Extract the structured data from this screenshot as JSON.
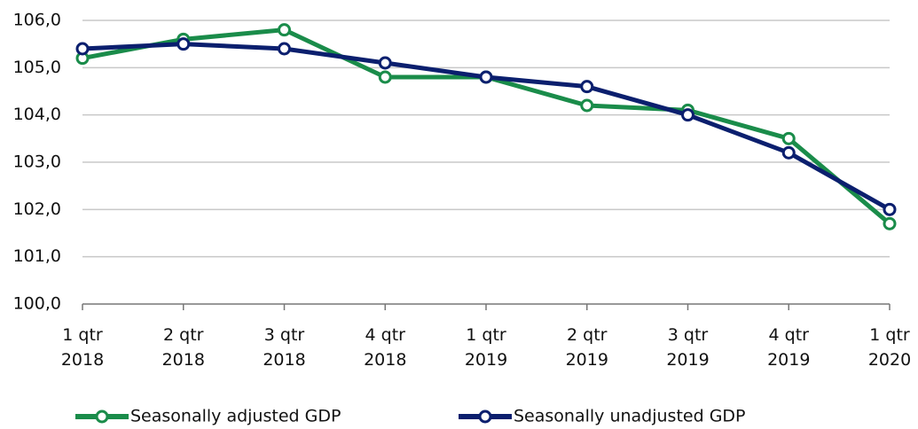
{
  "chart_data": {
    "type": "line",
    "categories": [
      "1 qtr 2018",
      "2 qtr 2018",
      "3 qtr 2018",
      "4 qtr 2018",
      "1 qtr 2019",
      "2 qtr 2019",
      "3 qtr 2019",
      "4 qtr 2019",
      "1 qtr 2020"
    ],
    "series": [
      {
        "name": "Seasonally adjusted GDP",
        "color": "#1a8c4a",
        "values": [
          105.2,
          105.6,
          105.8,
          104.8,
          104.8,
          104.2,
          104.1,
          103.5,
          101.7
        ]
      },
      {
        "name": "Seasonally unadjusted GDP",
        "color": "#0b1f6e",
        "values": [
          105.4,
          105.5,
          105.4,
          105.1,
          104.8,
          104.6,
          104.0,
          103.2,
          102.0
        ]
      }
    ],
    "ylim": [
      100,
      106
    ],
    "yticks": [
      {
        "value": 100,
        "label": "100,0"
      },
      {
        "value": 101,
        "label": "101,0"
      },
      {
        "value": 102,
        "label": "102,0"
      },
      {
        "value": 103,
        "label": "103,0"
      },
      {
        "value": 104,
        "label": "104,0"
      },
      {
        "value": 105,
        "label": "105,0"
      },
      {
        "value": 106,
        "label": "106,0"
      }
    ],
    "grid": true,
    "legend": "bottom"
  }
}
